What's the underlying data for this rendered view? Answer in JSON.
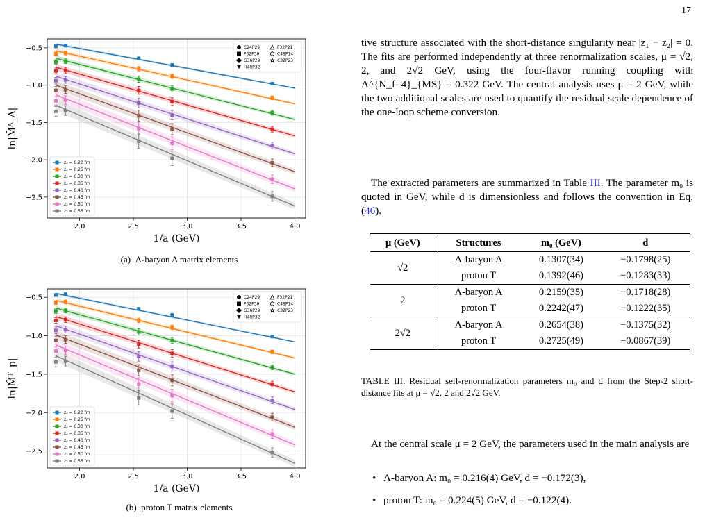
{
  "page_number": "17",
  "figures": [
    {
      "caption_label": "(a)",
      "caption_text": "Λ-baryon A matrix elements",
      "ylabel": "ln|M̂ᴬ_Λ|",
      "xlabel": "1/a (GeV)"
    },
    {
      "caption_label": "(b)",
      "caption_text": "proton T matrix elements",
      "ylabel": "ln|M̂ᵀ_p|",
      "xlabel": "1/a (GeV)"
    }
  ],
  "chart_data": [
    {
      "type": "scatter",
      "title": "",
      "xlabel": "1/a (GeV)",
      "ylabel": "ln|M̂ᴬ_Λ|",
      "xlim": [
        1.7,
        4.1
      ],
      "ylim": [
        -2.78,
        -0.38
      ],
      "xticks": [
        "2.0",
        "2.5",
        "3.0",
        "3.5",
        "4.0"
      ],
      "yticks": [
        "−0.5",
        "−1.0",
        "−1.5",
        "−2.0",
        "−2.5"
      ],
      "ensemble_legend": [
        "C24P29",
        "F32P21",
        "F32P30",
        "C48P14",
        "G36P29",
        "C32P23",
        "H48P32"
      ],
      "series": [
        {
          "name": "z₂ = 0.20 fm",
          "color": "#1f77b4",
          "x": [
            1.78,
            1.87,
            2.55,
            2.86,
            3.79
          ],
          "y": [
            -0.48,
            -0.47,
            -0.64,
            -0.73,
            -0.98
          ],
          "fit": [
            [
              1.78,
              -0.45
            ],
            [
              4.0,
              -1.04
            ]
          ]
        },
        {
          "name": "z₂ = 0.25 fm",
          "color": "#ff7f0e",
          "x": [
            1.78,
            1.87,
            2.55,
            2.86,
            3.79
          ],
          "y": [
            -0.58,
            -0.57,
            -0.78,
            -0.88,
            -1.17
          ],
          "fit": [
            [
              1.78,
              -0.54
            ],
            [
              4.0,
              -1.25
            ]
          ]
        },
        {
          "name": "z₂ = 0.30 fm",
          "color": "#2ca02c",
          "x": [
            1.78,
            1.87,
            2.55,
            2.86,
            3.79
          ],
          "y": [
            -0.69,
            -0.68,
            -0.92,
            -1.05,
            -1.37
          ],
          "fit": [
            [
              1.78,
              -0.64
            ],
            [
              4.0,
              -1.46
            ]
          ]
        },
        {
          "name": "z₂ = 0.35 fm",
          "color": "#d62728",
          "x": [
            1.78,
            1.87,
            2.55,
            2.86,
            3.79
          ],
          "y": [
            -0.81,
            -0.8,
            -1.07,
            -1.22,
            -1.59
          ],
          "fit": [
            [
              1.78,
              -0.76
            ],
            [
              4.0,
              -1.68
            ]
          ]
        },
        {
          "name": "z₂ = 0.40 fm",
          "color": "#9467bd",
          "x": [
            1.78,
            1.87,
            2.55,
            2.86,
            3.79
          ],
          "y": [
            -0.94,
            -0.93,
            -1.24,
            -1.4,
            -1.81
          ],
          "fit": [
            [
              1.78,
              -0.88
            ],
            [
              4.0,
              -1.92
            ]
          ]
        },
        {
          "name": "z₂ = 0.45 fm",
          "color": "#8c564b",
          "x": [
            1.78,
            1.87,
            2.55,
            2.86,
            3.79
          ],
          "y": [
            -1.07,
            -1.06,
            -1.41,
            -1.59,
            -2.04
          ],
          "fit": [
            [
              1.78,
              -1.0
            ],
            [
              4.0,
              -2.16
            ]
          ]
        },
        {
          "name": "z₂ = 0.50 fm",
          "color": "#e377c2",
          "x": [
            1.78,
            1.87,
            2.55,
            2.86,
            3.79
          ],
          "y": [
            -1.21,
            -1.2,
            -1.58,
            -1.78,
            -2.26
          ],
          "fit": [
            [
              1.78,
              -1.13
            ],
            [
              4.0,
              -2.39
            ]
          ]
        },
        {
          "name": "z₂ = 0.55 fm",
          "color": "#7f7f7f",
          "x": [
            1.78,
            1.87,
            2.55,
            2.86,
            3.79
          ],
          "y": [
            -1.35,
            -1.34,
            -1.75,
            -1.98,
            -2.49
          ],
          "fit": [
            [
              1.78,
              -1.27
            ],
            [
              4.0,
              -2.62
            ]
          ]
        }
      ]
    },
    {
      "type": "scatter",
      "title": "",
      "xlabel": "1/a (GeV)",
      "ylabel": "ln|M̂ᵀ_p|",
      "xlim": [
        1.7,
        4.1
      ],
      "ylim": [
        -2.72,
        -0.39
      ],
      "xticks": [
        "2.0",
        "2.5",
        "3.0",
        "3.5",
        "4.0"
      ],
      "yticks": [
        "−0.5",
        "−1.0",
        "−1.5",
        "−2.0",
        "−2.5"
      ],
      "ensemble_legend": [
        "C24P29",
        "F32P21",
        "F32P30",
        "C48P14",
        "G36P29",
        "C32P23",
        "H48P32"
      ],
      "series": [
        {
          "name": "z₂ = 0.20 fm",
          "color": "#1f77b4",
          "x": [
            1.78,
            1.87,
            2.55,
            2.86,
            3.79
          ],
          "y": [
            -0.47,
            -0.46,
            -0.65,
            -0.73,
            -1.01
          ],
          "fit": [
            [
              1.78,
              -0.45
            ],
            [
              4.0,
              -1.08
            ]
          ]
        },
        {
          "name": "z₂ = 0.25 fm",
          "color": "#ff7f0e",
          "x": [
            1.78,
            1.87,
            2.55,
            2.86,
            3.79
          ],
          "y": [
            -0.57,
            -0.56,
            -0.8,
            -0.89,
            -1.21
          ],
          "fit": [
            [
              1.78,
              -0.54
            ],
            [
              4.0,
              -1.29
            ]
          ]
        },
        {
          "name": "z₂ = 0.30 fm",
          "color": "#2ca02c",
          "x": [
            1.78,
            1.87,
            2.55,
            2.86,
            3.79
          ],
          "y": [
            -0.68,
            -0.67,
            -0.95,
            -1.06,
            -1.41
          ],
          "fit": [
            [
              1.78,
              -0.64
            ],
            [
              4.0,
              -1.5
            ]
          ]
        },
        {
          "name": "z₂ = 0.35 fm",
          "color": "#d62728",
          "x": [
            1.78,
            1.87,
            2.55,
            2.86,
            3.79
          ],
          "y": [
            -0.8,
            -0.79,
            -1.11,
            -1.23,
            -1.63
          ],
          "fit": [
            [
              1.78,
              -0.75
            ],
            [
              4.0,
              -1.73
            ]
          ]
        },
        {
          "name": "z₂ = 0.40 fm",
          "color": "#9467bd",
          "x": [
            1.78,
            1.87,
            2.55,
            2.86,
            3.79
          ],
          "y": [
            -0.93,
            -0.92,
            -1.27,
            -1.4,
            -1.84
          ],
          "fit": [
            [
              1.78,
              -0.87
            ],
            [
              4.0,
              -1.96
            ]
          ]
        },
        {
          "name": "z₂ = 0.45 fm",
          "color": "#8c564b",
          "x": [
            1.78,
            1.87,
            2.55,
            2.86,
            3.79
          ],
          "y": [
            -1.06,
            -1.05,
            -1.45,
            -1.58,
            -2.06
          ],
          "fit": [
            [
              1.78,
              -0.99
            ],
            [
              4.0,
              -2.19
            ]
          ]
        },
        {
          "name": "z₂ = 0.50 fm",
          "color": "#e377c2",
          "x": [
            1.78,
            1.87,
            2.55,
            2.86,
            3.79
          ],
          "y": [
            -1.2,
            -1.19,
            -1.63,
            -1.78,
            -2.28
          ],
          "fit": [
            [
              1.78,
              -1.12
            ],
            [
              4.0,
              -2.42
            ]
          ]
        },
        {
          "name": "z₂ = 0.55 fm",
          "color": "#7f7f7f",
          "x": [
            1.78,
            1.87,
            2.55,
            2.86,
            3.79
          ],
          "y": [
            -1.34,
            -1.33,
            -1.81,
            -1.98,
            -2.52
          ],
          "fit": [
            [
              1.78,
              -1.26
            ],
            [
              4.0,
              -2.66
            ]
          ]
        }
      ]
    }
  ],
  "body": {
    "para1": "tive structure associated with the short-distance singularity near |z₁ − z₂| = 0. The fits are performed independently at three renormalization scales, μ = √2, 2, and 2√2 GeV, using the four-flavor running coupling with Λ^{N_f=4}_{MS} = 0.322 GeV. The central analysis uses μ = 2 GeV, while the two additional scales are used to quantify the residual scale dependence of the one-loop scheme conversion.",
    "para2_a": "The extracted parameters are summarized in Table ",
    "para2_link": "III",
    "para2_b": ". The parameter m₀ is quoted in GeV, while d is dimensionless and follows the convention in Eq. (",
    "para2_eq": "46",
    "para2_c": ").",
    "para3": "At the central scale μ = 2 GeV, the parameters used in the main analysis are",
    "bullet1": "Λ-baryon A: m₀ = 0.216(4) GeV, d = −0.172(3),",
    "bullet2": "proton T: m₀ = 0.224(5) GeV, d = −0.122(4)."
  },
  "table": {
    "headers": [
      "μ (GeV)",
      "Structures",
      "m₀ (GeV)",
      "d"
    ],
    "groups": [
      {
        "mu": "√2",
        "rows": [
          [
            "Λ-baryon A",
            "0.1307(34)",
            "−0.1798(25)"
          ],
          [
            "proton T",
            "0.1392(46)",
            "−0.1283(33)"
          ]
        ]
      },
      {
        "mu": "2",
        "rows": [
          [
            "Λ-baryon A",
            "0.2159(35)",
            "−0.1718(28)"
          ],
          [
            "proton T",
            "0.2242(47)",
            "−0.1222(35)"
          ]
        ]
      },
      {
        "mu": "2√2",
        "rows": [
          [
            "Λ-baryon A",
            "0.2654(38)",
            "−0.1375(32)"
          ],
          [
            "proton T",
            "0.2725(49)",
            "−0.0867(39)"
          ]
        ]
      }
    ],
    "caption": "TABLE III. Residual self-renormalization parameters m₀ and d from the Step-2 short-distance fits at μ = √2, 2 and 2√2 GeV."
  }
}
